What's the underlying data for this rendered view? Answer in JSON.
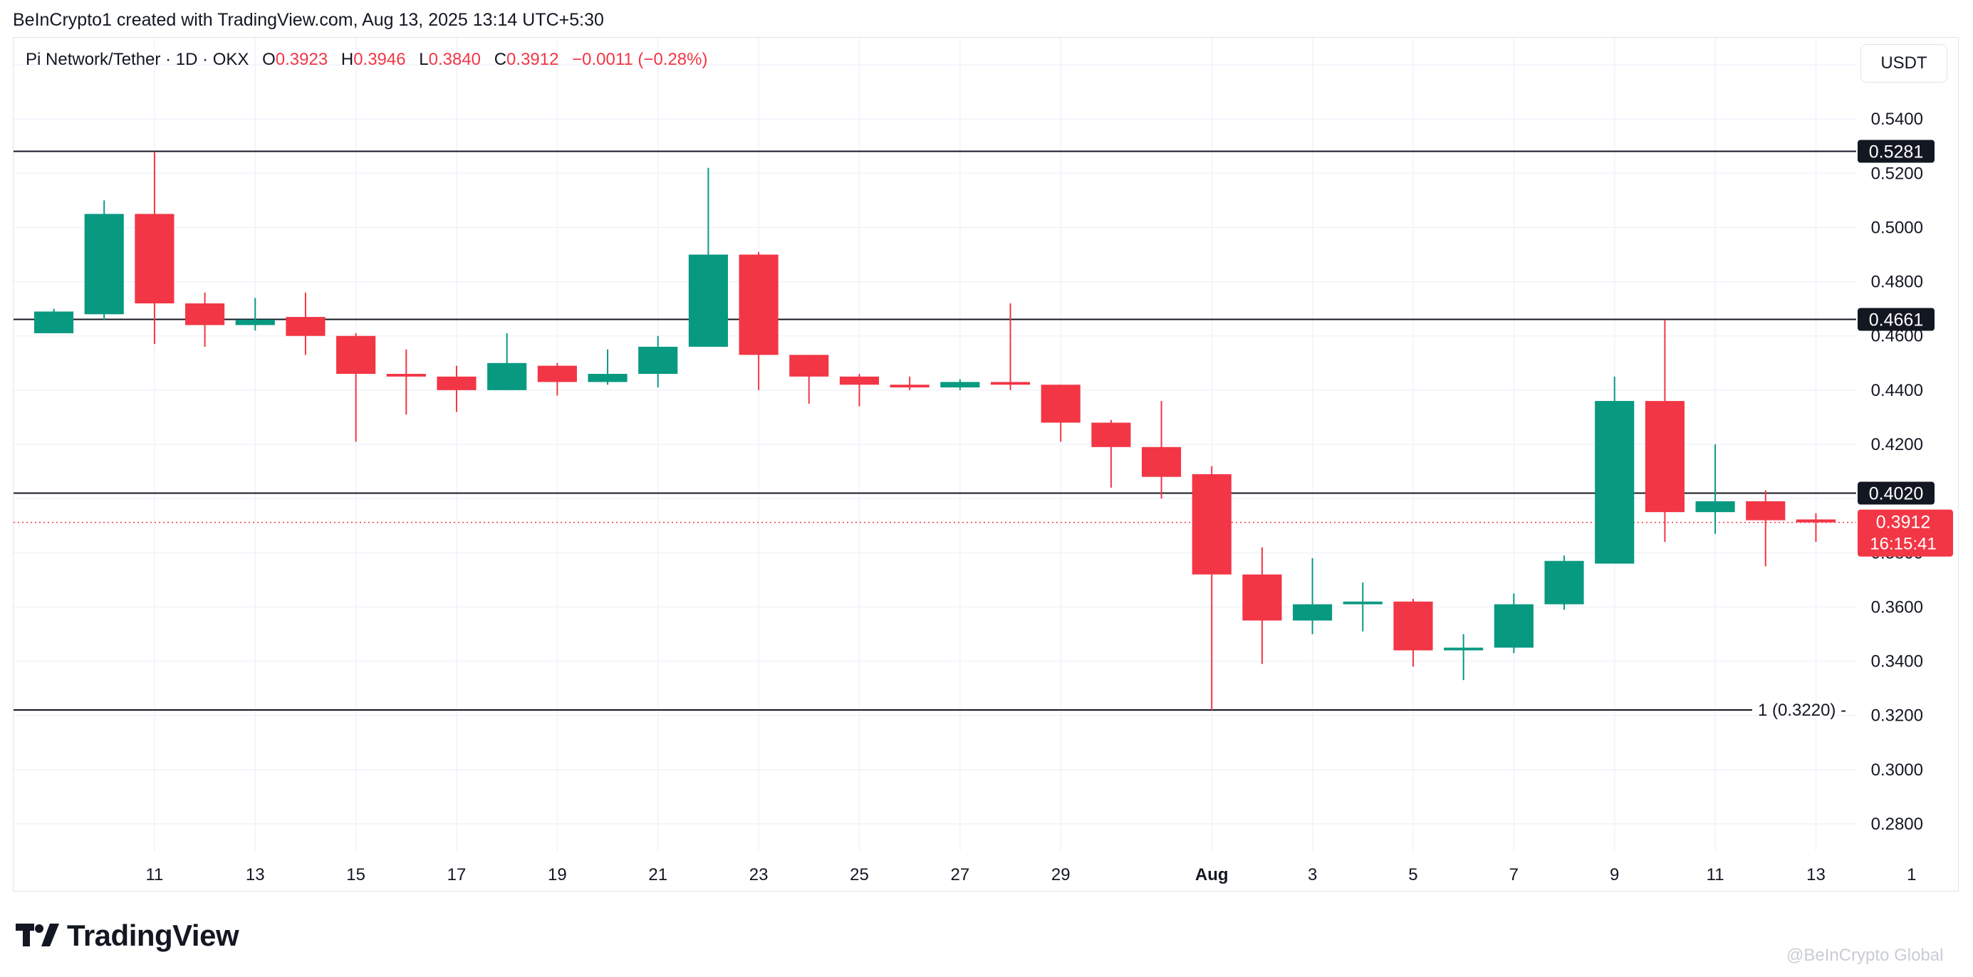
{
  "credit": "BeInCrypto1 created with TradingView.com, Aug 13, 2025 13:14 UTC+5:30",
  "legend": {
    "symbol": "Pi Network/Tether · 1D · OKX",
    "open_label": "O",
    "open": "0.3923",
    "high_label": "H",
    "high": "0.3946",
    "low_label": "L",
    "low": "0.3840",
    "close_label": "C",
    "close": "0.3912",
    "change": "−0.0011 (−0.28%)"
  },
  "unit_button": "USDT",
  "brand": "TradingView",
  "watermark": "@BeInCrypto Global",
  "colors": {
    "up": "#089981",
    "down": "#f23645",
    "grid": "#f0f3fa",
    "level": "#131722"
  },
  "chart_data": {
    "type": "candlestick",
    "ylim": [
      0.27,
      0.57
    ],
    "x_range": [
      -1.8,
      34.8
    ],
    "y_ticks": [
      "0.2800",
      "0.3000",
      "0.3200",
      "0.3400",
      "0.3600",
      "0.3800",
      "0.4000",
      "0.4200",
      "0.4400",
      "0.4600",
      "0.4800",
      "0.5000",
      "0.5200",
      "0.5400",
      "0.5600"
    ],
    "x_ticks": [
      {
        "label": "11",
        "i": 1
      },
      {
        "label": "13",
        "i": 3
      },
      {
        "label": "15",
        "i": 5
      },
      {
        "label": "17",
        "i": 7
      },
      {
        "label": "19",
        "i": 9
      },
      {
        "label": "21",
        "i": 11
      },
      {
        "label": "23",
        "i": 13
      },
      {
        "label": "25",
        "i": 15
      },
      {
        "label": "27",
        "i": 17
      },
      {
        "label": "29",
        "i": 19
      },
      {
        "label": "Aug",
        "i": 22,
        "bold": true
      },
      {
        "label": "3",
        "i": 24
      },
      {
        "label": "5",
        "i": 26
      },
      {
        "label": "7",
        "i": 28
      },
      {
        "label": "9",
        "i": 30
      },
      {
        "label": "11",
        "i": 32
      },
      {
        "label": "13",
        "i": 34
      },
      {
        "label": "1",
        "i": 35.9
      }
    ],
    "candles": [
      {
        "i": -1,
        "o": 0.461,
        "h": 0.47,
        "l": 0.461,
        "c": 0.469
      },
      {
        "i": 0,
        "o": 0.468,
        "h": 0.51,
        "l": 0.466,
        "c": 0.505
      },
      {
        "i": 1,
        "o": 0.505,
        "h": 0.528,
        "l": 0.457,
        "c": 0.472
      },
      {
        "i": 2,
        "o": 0.472,
        "h": 0.476,
        "l": 0.456,
        "c": 0.464
      },
      {
        "i": 3,
        "o": 0.464,
        "h": 0.474,
        "l": 0.462,
        "c": 0.466
      },
      {
        "i": 4,
        "o": 0.467,
        "h": 0.476,
        "l": 0.453,
        "c": 0.46
      },
      {
        "i": 5,
        "o": 0.46,
        "h": 0.461,
        "l": 0.421,
        "c": 0.446
      },
      {
        "i": 6,
        "o": 0.446,
        "h": 0.455,
        "l": 0.431,
        "c": 0.445
      },
      {
        "i": 7,
        "o": 0.445,
        "h": 0.449,
        "l": 0.432,
        "c": 0.44
      },
      {
        "i": 8,
        "o": 0.44,
        "h": 0.461,
        "l": 0.44,
        "c": 0.45
      },
      {
        "i": 9,
        "o": 0.449,
        "h": 0.45,
        "l": 0.438,
        "c": 0.443
      },
      {
        "i": 10,
        "o": 0.443,
        "h": 0.455,
        "l": 0.442,
        "c": 0.446
      },
      {
        "i": 11,
        "o": 0.446,
        "h": 0.46,
        "l": 0.441,
        "c": 0.456
      },
      {
        "i": 12,
        "o": 0.456,
        "h": 0.522,
        "l": 0.456,
        "c": 0.49
      },
      {
        "i": 13,
        "o": 0.49,
        "h": 0.491,
        "l": 0.44,
        "c": 0.453
      },
      {
        "i": 14,
        "o": 0.453,
        "h": 0.453,
        "l": 0.435,
        "c": 0.445
      },
      {
        "i": 15,
        "o": 0.445,
        "h": 0.446,
        "l": 0.434,
        "c": 0.442
      },
      {
        "i": 16,
        "o": 0.442,
        "h": 0.445,
        "l": 0.44,
        "c": 0.441
      },
      {
        "i": 17,
        "o": 0.441,
        "h": 0.444,
        "l": 0.44,
        "c": 0.443
      },
      {
        "i": 18,
        "o": 0.443,
        "h": 0.472,
        "l": 0.44,
        "c": 0.442
      },
      {
        "i": 19,
        "o": 0.442,
        "h": 0.442,
        "l": 0.421,
        "c": 0.428
      },
      {
        "i": 20,
        "o": 0.428,
        "h": 0.429,
        "l": 0.404,
        "c": 0.419
      },
      {
        "i": 21,
        "o": 0.419,
        "h": 0.436,
        "l": 0.4,
        "c": 0.408
      },
      {
        "i": 22,
        "o": 0.409,
        "h": 0.412,
        "l": 0.322,
        "c": 0.372
      },
      {
        "i": 23,
        "o": 0.372,
        "h": 0.382,
        "l": 0.339,
        "c": 0.355
      },
      {
        "i": 24,
        "o": 0.355,
        "h": 0.378,
        "l": 0.35,
        "c": 0.361
      },
      {
        "i": 25,
        "o": 0.361,
        "h": 0.369,
        "l": 0.351,
        "c": 0.362
      },
      {
        "i": 26,
        "o": 0.362,
        "h": 0.363,
        "l": 0.338,
        "c": 0.344
      },
      {
        "i": 27,
        "o": 0.344,
        "h": 0.35,
        "l": 0.333,
        "c": 0.345
      },
      {
        "i": 28,
        "o": 0.345,
        "h": 0.365,
        "l": 0.343,
        "c": 0.361
      },
      {
        "i": 29,
        "o": 0.361,
        "h": 0.379,
        "l": 0.359,
        "c": 0.377
      },
      {
        "i": 30,
        "o": 0.376,
        "h": 0.445,
        "l": 0.376,
        "c": 0.436
      },
      {
        "i": 31,
        "o": 0.436,
        "h": 0.466,
        "l": 0.384,
        "c": 0.395
      },
      {
        "i": 32,
        "o": 0.395,
        "h": 0.42,
        "l": 0.387,
        "c": 0.399
      },
      {
        "i": 33,
        "o": 0.399,
        "h": 0.403,
        "l": 0.375,
        "c": 0.392
      },
      {
        "i": 34,
        "o": 0.3923,
        "h": 0.3946,
        "l": 0.384,
        "c": 0.3912
      }
    ],
    "levels": [
      {
        "value": 0.5281,
        "label": "0.5281"
      },
      {
        "value": 0.4661,
        "label": "0.4661"
      },
      {
        "value": 0.402,
        "label": "0.4020"
      },
      {
        "value": 0.322,
        "label": "1 (0.3220)"
      }
    ],
    "current": {
      "value": 0.3912,
      "label": "0.3912",
      "countdown": "16:15:41"
    }
  }
}
